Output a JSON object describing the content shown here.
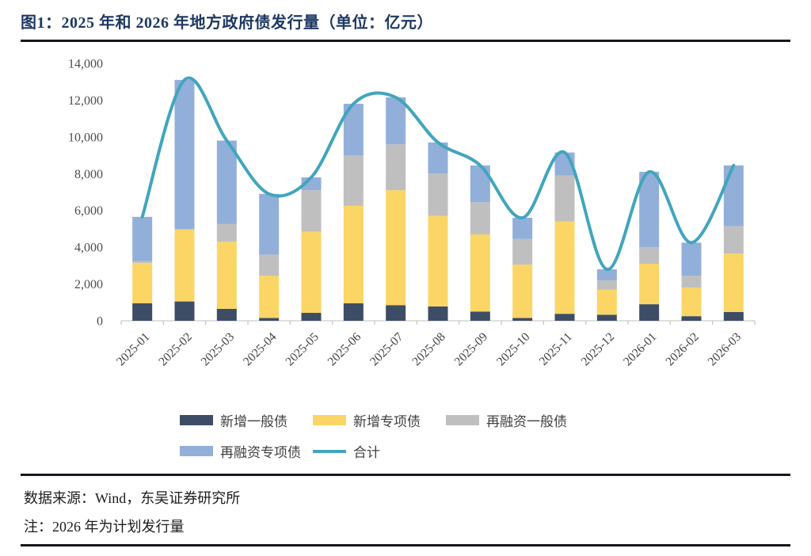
{
  "figure": {
    "title": "图1：2025 年和 2026 年地方政府债发行量（单位：亿元）",
    "source_note": "数据来源：Wind，东吴证券研究所",
    "plan_note": "注：2026 年为计划发行量"
  },
  "colors": {
    "title_text": "#1F3864",
    "axis_text": "#4d4d4d",
    "x_label_text": "#404040",
    "axis_line": "#D6D6D6",
    "rule": "#15181d"
  },
  "chart_data": {
    "type": "bar",
    "subtype": "stacked-bars-with-total-line",
    "title": "2025 年和 2026 年地方政府债发行量",
    "unit": "亿元",
    "categories": [
      "2025-01",
      "2025-02",
      "2025-03",
      "2025-04",
      "2025-05",
      "2025-06",
      "2025-07",
      "2025-08",
      "2025-09",
      "2025-10",
      "2025-11",
      "2025-12",
      "2026-01",
      "2026-02",
      "2026-03"
    ],
    "series": [
      {
        "name": "新增一般债",
        "type": "bar",
        "color": "#3E4D66",
        "values": [
          950,
          1050,
          650,
          150,
          430,
          950,
          850,
          780,
          500,
          150,
          380,
          330,
          900,
          250,
          480
        ]
      },
      {
        "name": "新增专项债",
        "type": "bar",
        "color": "#FBD565",
        "values": [
          2200,
          3900,
          3650,
          2300,
          4420,
          5300,
          6250,
          4920,
          4200,
          2900,
          5020,
          1370,
          2200,
          1550,
          3170
        ]
      },
      {
        "name": "再融资一般债",
        "type": "bar",
        "color": "#BFBFBF",
        "values": [
          100,
          50,
          960,
          1150,
          2250,
          2750,
          2500,
          2300,
          1750,
          1400,
          2500,
          500,
          900,
          650,
          1500
        ]
      },
      {
        "name": "再融资专项债",
        "type": "bar",
        "color": "#92AFD9",
        "values": [
          2400,
          8100,
          4540,
          3300,
          700,
          2800,
          2550,
          1700,
          2000,
          1150,
          1250,
          600,
          4100,
          1800,
          3300
        ]
      },
      {
        "name": "合计",
        "type": "line",
        "color": "#42A5BD",
        "values": [
          5650,
          13100,
          9800,
          6900,
          7800,
          11800,
          12150,
          9700,
          8450,
          5600,
          9150,
          2800,
          8100,
          4250,
          8450
        ]
      }
    ],
    "ylim": [
      0,
      14000
    ],
    "ytick_step": 2000,
    "ytick_labels": [
      "0",
      "2,000",
      "4,000",
      "6,000",
      "8,000",
      "10,000",
      "12,000",
      "14,000"
    ],
    "grid": false,
    "legend_position": "bottom"
  }
}
